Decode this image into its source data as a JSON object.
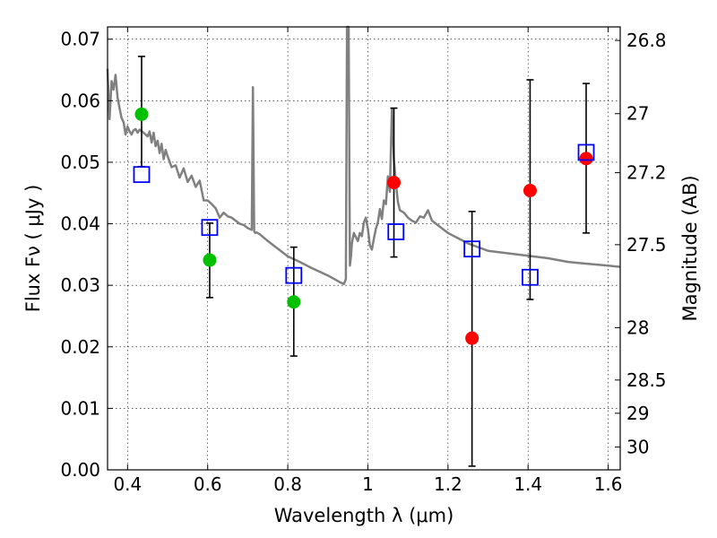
{
  "chart_data": {
    "type": "scatter",
    "xlabel": "Wavelength  λ (μm)",
    "ylabel": "Flux  Fν  ( μJy )",
    "ylabel_right": "Magnitude (AB)",
    "xlim": [
      0.35,
      1.63
    ],
    "ylim": [
      0.0,
      0.072
    ],
    "x_ticks": [
      0.4,
      0.6,
      0.8,
      1.0,
      1.2,
      1.4,
      1.6
    ],
    "x_tick_labels": [
      "0.4",
      "0.6",
      "0.8",
      "1",
      "1.2",
      "1.4",
      "1.6"
    ],
    "y_ticks": [
      0.0,
      0.01,
      0.02,
      0.03,
      0.04,
      0.05,
      0.06,
      0.07
    ],
    "y_tick_labels": [
      "0.00",
      "0.01",
      "0.02",
      "0.03",
      "0.04",
      "0.05",
      "0.06",
      "0.07"
    ],
    "right_ticks": [
      {
        "label": "26.8",
        "flux": 0.0698
      },
      {
        "label": "27",
        "flux": 0.0579
      },
      {
        "label": "27.2",
        "flux": 0.0483
      },
      {
        "label": "27.5",
        "flux": 0.0366
      },
      {
        "label": "28",
        "flux": 0.0231
      },
      {
        "label": "28.5",
        "flux": 0.0146
      },
      {
        "label": "29",
        "flux": 0.0092
      },
      {
        "label": "30",
        "flux": 0.0037
      }
    ],
    "grid": true,
    "series": [
      {
        "marker": "circle",
        "color": "#00c000",
        "x": [
          0.435,
          0.605,
          0.815
        ],
        "y": [
          0.0578,
          0.0341,
          0.0273
        ]
      },
      {
        "marker": "circle",
        "color": "#ff0000",
        "x": [
          1.065,
          1.26,
          1.405,
          1.545
        ],
        "y": [
          0.0467,
          0.0214,
          0.0454,
          0.0506
        ]
      },
      {
        "marker": "square",
        "color": "#0000ff",
        "x": [
          0.435,
          0.605,
          0.815,
          1.07,
          1.26,
          1.405,
          1.545
        ],
        "y": [
          0.048,
          0.0394,
          0.0316,
          0.0387,
          0.0359,
          0.0313,
          0.0516
        ]
      }
    ],
    "error_bars": [
      {
        "x": 0.435,
        "lo": 0.0493,
        "hi": 0.0672
      },
      {
        "x": 0.605,
        "lo": 0.028,
        "hi": 0.0401
      },
      {
        "x": 0.815,
        "lo": 0.0185,
        "hi": 0.0362
      },
      {
        "x": 1.065,
        "lo": 0.0346,
        "hi": 0.0588
      },
      {
        "x": 1.26,
        "lo": 0.0006,
        "hi": 0.042
      },
      {
        "x": 1.405,
        "lo": 0.0277,
        "hi": 0.0634
      },
      {
        "x": 1.545,
        "lo": 0.0385,
        "hi": 0.0628
      }
    ],
    "template_spectrum": {
      "color": "#808080",
      "x": [
        0.35,
        0.355,
        0.36,
        0.365,
        0.37,
        0.375,
        0.38,
        0.385,
        0.39,
        0.395,
        0.4,
        0.405,
        0.41,
        0.415,
        0.42,
        0.425,
        0.43,
        0.44,
        0.45,
        0.455,
        0.46,
        0.465,
        0.47,
        0.475,
        0.48,
        0.485,
        0.49,
        0.495,
        0.5,
        0.51,
        0.52,
        0.53,
        0.54,
        0.55,
        0.56,
        0.57,
        0.58,
        0.59,
        0.6,
        0.61,
        0.62,
        0.63,
        0.64,
        0.65,
        0.66,
        0.67,
        0.68,
        0.69,
        0.7,
        0.71,
        0.713,
        0.716,
        0.719,
        0.722,
        0.73,
        0.75,
        0.77,
        0.8,
        0.83,
        0.86,
        0.9,
        0.93,
        0.94,
        0.945,
        0.948,
        0.952,
        0.955,
        0.958,
        0.96,
        0.965,
        0.97,
        0.975,
        0.98,
        0.985,
        0.99,
        0.995,
        1.0,
        1.005,
        1.01,
        1.015,
        1.02,
        1.025,
        1.03,
        1.035,
        1.04,
        1.045,
        1.05,
        1.055,
        1.06,
        1.065,
        1.07,
        1.075,
        1.08,
        1.09,
        1.1,
        1.11,
        1.12,
        1.13,
        1.14,
        1.15,
        1.16,
        1.2,
        1.25,
        1.3,
        1.35,
        1.4,
        1.45,
        1.5,
        1.55,
        1.6,
        1.63
      ],
      "y": [
        0.0652,
        0.057,
        0.0632,
        0.0618,
        0.0642,
        0.0605,
        0.0588,
        0.0572,
        0.0565,
        0.0545,
        0.0558,
        0.055,
        0.0545,
        0.0552,
        0.0554,
        0.0548,
        0.0553,
        0.0548,
        0.0542,
        0.055,
        0.0532,
        0.0548,
        0.0526,
        0.0535,
        0.0515,
        0.053,
        0.0505,
        0.052,
        0.051,
        0.0492,
        0.0495,
        0.0475,
        0.049,
        0.0468,
        0.0478,
        0.046,
        0.047,
        0.0438,
        0.0438,
        0.0432,
        0.0425,
        0.041,
        0.0418,
        0.0412,
        0.041,
        0.0405,
        0.04,
        0.0398,
        0.0393,
        0.039,
        0.0622,
        0.0388,
        0.0385,
        0.0386,
        0.0383,
        0.0372,
        0.0362,
        0.0347,
        0.0338,
        0.0328,
        0.0316,
        0.0305,
        0.0302,
        0.031,
        0.072,
        0.072,
        0.0332,
        0.0348,
        0.0368,
        0.0385,
        0.0378,
        0.0372,
        0.0385,
        0.038,
        0.0402,
        0.041,
        0.0392,
        0.0365,
        0.0358,
        0.0376,
        0.0392,
        0.0402,
        0.0424,
        0.0408,
        0.0438,
        0.0432,
        0.0477,
        0.0452,
        0.0587,
        0.0505,
        0.0465,
        0.0435,
        0.0422,
        0.0418,
        0.041,
        0.0405,
        0.0402,
        0.0412,
        0.041,
        0.0422,
        0.0405,
        0.0385,
        0.0368,
        0.0356,
        0.0352,
        0.0348,
        0.0344,
        0.0338,
        0.0335,
        0.0332,
        0.033
      ]
    }
  }
}
